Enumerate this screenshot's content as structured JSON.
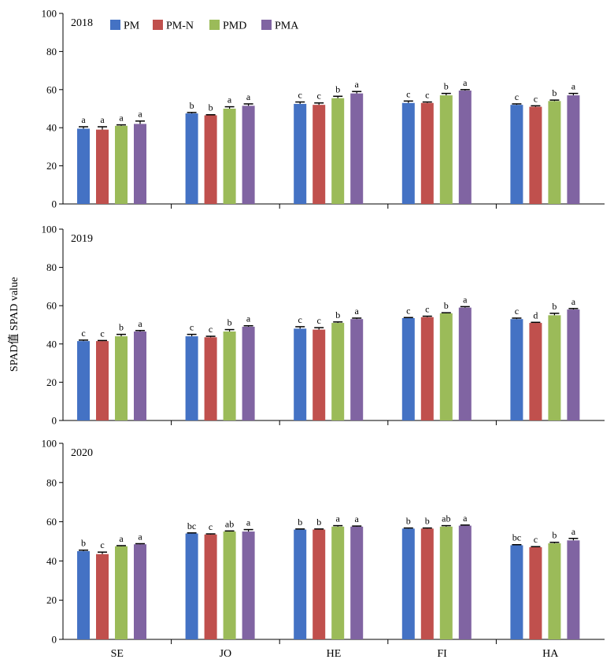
{
  "chart_data": {
    "type": "bar",
    "ylabel": "SPAD值 SPAD value",
    "ylim": [
      0,
      100
    ],
    "yticks": [
      0,
      20,
      40,
      60,
      80,
      100
    ],
    "categories": [
      "SE",
      "JO",
      "HE",
      "FI",
      "HA"
    ],
    "legend_position": "top-left",
    "error_bars": true,
    "series_meta": [
      {
        "name": "PM",
        "color": "#4472C4"
      },
      {
        "name": "PM-N",
        "color": "#C0504D"
      },
      {
        "name": "PMD",
        "color": "#9BBB59"
      },
      {
        "name": "PMA",
        "color": "#8064A2"
      }
    ],
    "panels": [
      {
        "label": "2018",
        "values": [
          [
            39.5,
            39.0,
            41.0,
            42.0
          ],
          [
            47.5,
            46.5,
            50.0,
            51.5
          ],
          [
            52.5,
            52.0,
            55.5,
            58.0
          ],
          [
            53.0,
            53.0,
            57.0,
            59.5
          ],
          [
            52.0,
            51.0,
            54.0,
            57.0
          ]
        ],
        "errors": [
          [
            1.0,
            1.5,
            0.5,
            1.5
          ],
          [
            0.5,
            0.3,
            1.0,
            1.0
          ],
          [
            1.0,
            1.0,
            1.0,
            1.0
          ],
          [
            1.0,
            0.5,
            1.0,
            0.5
          ],
          [
            0.5,
            0.5,
            0.5,
            1.0
          ]
        ],
        "letters": [
          [
            "a",
            "a",
            "a",
            "a"
          ],
          [
            "b",
            "b",
            "a",
            "a"
          ],
          [
            "c",
            "c",
            "b",
            "a"
          ],
          [
            "c",
            "c",
            "b",
            "a"
          ],
          [
            "c",
            "c",
            "b",
            "a"
          ]
        ]
      },
      {
        "label": "2019",
        "values": [
          [
            41.5,
            41.5,
            44.0,
            46.5
          ],
          [
            44.0,
            43.5,
            46.5,
            49.0
          ],
          [
            48.0,
            47.5,
            51.0,
            53.0
          ],
          [
            53.5,
            54.0,
            56.0,
            59.0
          ],
          [
            53.0,
            51.0,
            55.0,
            58.0
          ]
        ],
        "errors": [
          [
            0.5,
            0.3,
            1.0,
            0.5
          ],
          [
            1.0,
            0.5,
            1.0,
            0.5
          ],
          [
            1.0,
            1.0,
            0.5,
            0.5
          ],
          [
            0.3,
            0.5,
            0.3,
            0.5
          ],
          [
            0.5,
            0.3,
            1.0,
            0.5
          ]
        ],
        "letters": [
          [
            "c",
            "c",
            "b",
            "a"
          ],
          [
            "c",
            "c",
            "b",
            "a"
          ],
          [
            "c",
            "c",
            "b",
            "a"
          ],
          [
            "c",
            "c",
            "b",
            "a"
          ],
          [
            "c",
            "d",
            "b",
            "a"
          ]
        ]
      },
      {
        "label": "2020",
        "values": [
          [
            45.0,
            43.5,
            47.5,
            48.5
          ],
          [
            54.0,
            53.5,
            55.0,
            55.0
          ],
          [
            56.0,
            56.0,
            57.5,
            57.5
          ],
          [
            56.5,
            56.5,
            57.5,
            58.0
          ],
          [
            48.0,
            47.0,
            49.0,
            50.5
          ]
        ],
        "errors": [
          [
            0.5,
            1.0,
            0.3,
            0.3
          ],
          [
            0.3,
            0.3,
            0.3,
            1.0
          ],
          [
            0.3,
            0.3,
            0.5,
            0.3
          ],
          [
            0.3,
            0.3,
            0.5,
            0.3
          ],
          [
            0.3,
            0.3,
            0.5,
            1.0
          ]
        ],
        "letters": [
          [
            "b",
            "c",
            "a",
            "a"
          ],
          [
            "bc",
            "c",
            "ab",
            "a"
          ],
          [
            "b",
            "b",
            "a",
            "a"
          ],
          [
            "b",
            "b",
            "ab",
            "a"
          ],
          [
            "bc",
            "c",
            "b",
            "a"
          ]
        ]
      }
    ]
  }
}
